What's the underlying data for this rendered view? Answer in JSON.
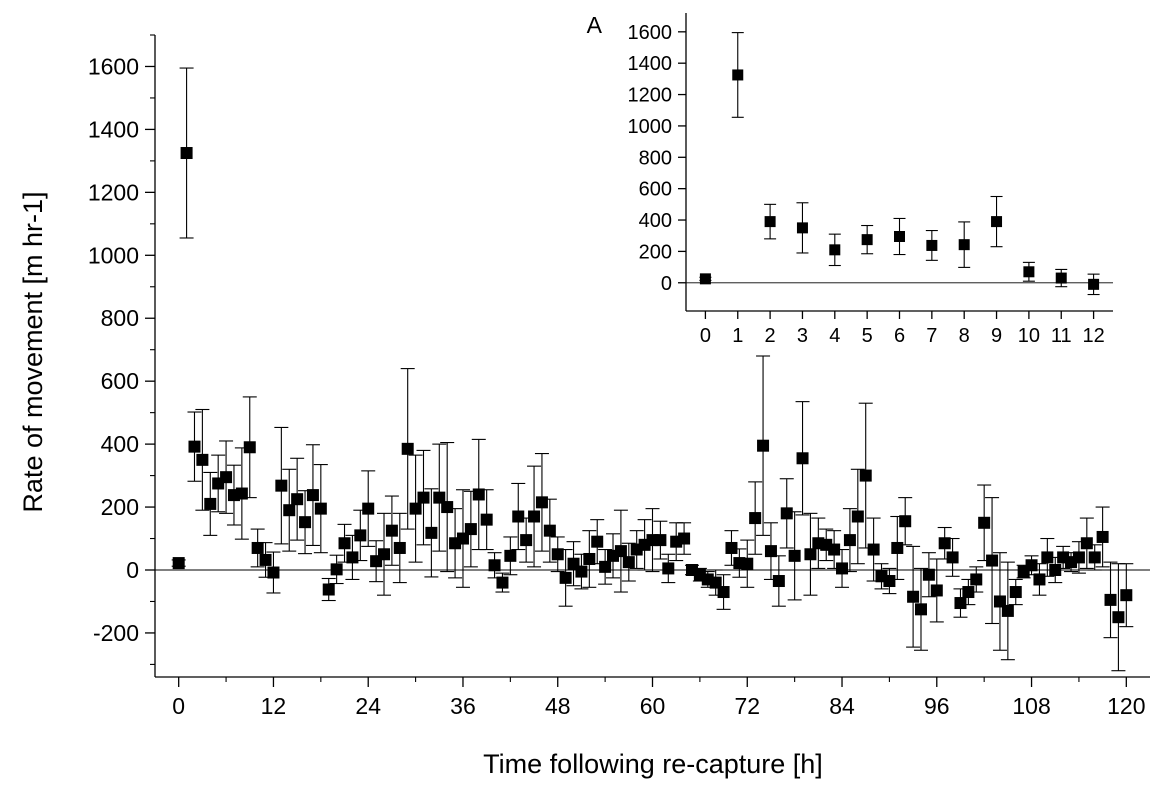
{
  "chart_data": [
    {
      "type": "scatter",
      "panel": "main",
      "title": "",
      "xlabel": "Time following re-capture [h]",
      "ylabel": "Rate of movement [m hr-1]",
      "xlim": [
        -3,
        123
      ],
      "ylim": [
        -340,
        1700
      ],
      "x_ticks": [
        0,
        12,
        24,
        36,
        48,
        60,
        72,
        84,
        96,
        108,
        120
      ],
      "y_ticks": [
        -200,
        0,
        200,
        400,
        600,
        800,
        1000,
        1200,
        1400,
        1600
      ],
      "zero_line": true,
      "marker": "square",
      "color": "#000000",
      "series": [
        {
          "points": [
            {
              "x": 0,
              "y": 22,
              "err": 10
            },
            {
              "x": 1,
              "y": 1325,
              "err": 270
            },
            {
              "x": 2,
              "y": 392,
              "err": 110
            },
            {
              "x": 3,
              "y": 350,
              "err": 160
            },
            {
              "x": 4,
              "y": 210,
              "err": 100
            },
            {
              "x": 5,
              "y": 275,
              "err": 90
            },
            {
              "x": 6,
              "y": 295,
              "err": 115
            },
            {
              "x": 7,
              "y": 238,
              "err": 95
            },
            {
              "x": 8,
              "y": 243,
              "err": 145
            },
            {
              "x": 9,
              "y": 390,
              "err": 160
            },
            {
              "x": 10,
              "y": 70,
              "err": 60
            },
            {
              "x": 11,
              "y": 32,
              "err": 55
            },
            {
              "x": 12,
              "y": -8,
              "err": 65
            },
            {
              "x": 13,
              "y": 268,
              "err": 185
            },
            {
              "x": 14,
              "y": 190,
              "err": 130
            },
            {
              "x": 15,
              "y": 225,
              "err": 130
            },
            {
              "x": 16,
              "y": 152,
              "err": 100
            },
            {
              "x": 17,
              "y": 238,
              "err": 160
            },
            {
              "x": 18,
              "y": 195,
              "err": 140
            },
            {
              "x": 19,
              "y": -62,
              "err": 35
            },
            {
              "x": 20,
              "y": 2,
              "err": 45
            },
            {
              "x": 21,
              "y": 85,
              "err": 60
            },
            {
              "x": 22,
              "y": 40,
              "err": 70
            },
            {
              "x": 23,
              "y": 110,
              "err": 80
            },
            {
              "x": 24,
              "y": 195,
              "err": 120
            },
            {
              "x": 25,
              "y": 28,
              "err": 65
            },
            {
              "x": 26,
              "y": 50,
              "err": 130
            },
            {
              "x": 27,
              "y": 125,
              "err": 110
            },
            {
              "x": 28,
              "y": 70,
              "err": 110
            },
            {
              "x": 29,
              "y": 385,
              "err": 255
            },
            {
              "x": 30,
              "y": 195,
              "err": 170
            },
            {
              "x": 31,
              "y": 230,
              "err": 150
            },
            {
              "x": 32,
              "y": 118,
              "err": 140
            },
            {
              "x": 33,
              "y": 230,
              "err": 170
            },
            {
              "x": 34,
              "y": 200,
              "err": 205
            },
            {
              "x": 35,
              "y": 85,
              "err": 110
            },
            {
              "x": 36,
              "y": 100,
              "err": 155
            },
            {
              "x": 37,
              "y": 130,
              "err": 120
            },
            {
              "x": 38,
              "y": 240,
              "err": 175
            },
            {
              "x": 39,
              "y": 160,
              "err": 95
            },
            {
              "x": 40,
              "y": 15,
              "err": 40
            },
            {
              "x": 41,
              "y": -40,
              "err": 30
            },
            {
              "x": 42,
              "y": 45,
              "err": 60
            },
            {
              "x": 43,
              "y": 170,
              "err": 105
            },
            {
              "x": 44,
              "y": 95,
              "err": 70
            },
            {
              "x": 45,
              "y": 170,
              "err": 160
            },
            {
              "x": 46,
              "y": 215,
              "err": 155
            },
            {
              "x": 47,
              "y": 125,
              "err": 100
            },
            {
              "x": 48,
              "y": 50,
              "err": 55
            },
            {
              "x": 49,
              "y": -25,
              "err": 90
            },
            {
              "x": 50,
              "y": 20,
              "err": 70
            },
            {
              "x": 51,
              "y": -5,
              "err": 55
            },
            {
              "x": 52,
              "y": 35,
              "err": 90
            },
            {
              "x": 53,
              "y": 90,
              "err": 70
            },
            {
              "x": 54,
              "y": 10,
              "err": 55
            },
            {
              "x": 55,
              "y": 45,
              "err": 70
            },
            {
              "x": 56,
              "y": 60,
              "err": 130
            },
            {
              "x": 57,
              "y": 25,
              "err": 60
            },
            {
              "x": 58,
              "y": 65,
              "err": 60
            },
            {
              "x": 59,
              "y": 80,
              "err": 80
            },
            {
              "x": 60,
              "y": 95,
              "err": 100
            },
            {
              "x": 61,
              "y": 95,
              "err": 60
            },
            {
              "x": 62,
              "y": 5,
              "err": 45
            },
            {
              "x": 63,
              "y": 90,
              "err": 60
            },
            {
              "x": 64,
              "y": 100,
              "err": 50
            },
            {
              "x": 65,
              "y": 0,
              "err": 15
            },
            {
              "x": 66,
              "y": -15,
              "err": 20
            },
            {
              "x": 67,
              "y": -30,
              "err": 25
            },
            {
              "x": 68,
              "y": -40,
              "err": 40
            },
            {
              "x": 69,
              "y": -70,
              "err": 55
            },
            {
              "x": 70,
              "y": 70,
              "err": 55
            },
            {
              "x": 71,
              "y": 22,
              "err": 45
            },
            {
              "x": 72,
              "y": 20,
              "err": 75
            },
            {
              "x": 73,
              "y": 165,
              "err": 115
            },
            {
              "x": 74,
              "y": 395,
              "err": 285
            },
            {
              "x": 75,
              "y": 60,
              "err": 90
            },
            {
              "x": 76,
              "y": -35,
              "err": 80
            },
            {
              "x": 77,
              "y": 180,
              "err": 110
            },
            {
              "x": 78,
              "y": 45,
              "err": 140
            },
            {
              "x": 79,
              "y": 355,
              "err": 180
            },
            {
              "x": 80,
              "y": 50,
              "err": 130
            },
            {
              "x": 81,
              "y": 85,
              "err": 80
            },
            {
              "x": 82,
              "y": 80,
              "err": 50
            },
            {
              "x": 83,
              "y": 65,
              "err": 60
            },
            {
              "x": 84,
              "y": 5,
              "err": 60
            },
            {
              "x": 85,
              "y": 95,
              "err": 100
            },
            {
              "x": 86,
              "y": 170,
              "err": 150
            },
            {
              "x": 87,
              "y": 300,
              "err": 230
            },
            {
              "x": 88,
              "y": 65,
              "err": 100
            },
            {
              "x": 89,
              "y": -20,
              "err": 40
            },
            {
              "x": 90,
              "y": -35,
              "err": 40
            },
            {
              "x": 91,
              "y": 70,
              "err": 100
            },
            {
              "x": 92,
              "y": 155,
              "err": 75
            },
            {
              "x": 93,
              "y": -85,
              "err": 160
            },
            {
              "x": 94,
              "y": -125,
              "err": 130
            },
            {
              "x": 95,
              "y": -15,
              "err": 70
            },
            {
              "x": 96,
              "y": -65,
              "err": 100
            },
            {
              "x": 97,
              "y": 85,
              "err": 50
            },
            {
              "x": 98,
              "y": 40,
              "err": 60
            },
            {
              "x": 99,
              "y": -105,
              "err": 45
            },
            {
              "x": 100,
              "y": -70,
              "err": 40
            },
            {
              "x": 101,
              "y": -30,
              "err": 40
            },
            {
              "x": 102,
              "y": 150,
              "err": 120
            },
            {
              "x": 103,
              "y": 30,
              "err": 200
            },
            {
              "x": 104,
              "y": -100,
              "err": 155
            },
            {
              "x": 105,
              "y": -130,
              "err": 155
            },
            {
              "x": 106,
              "y": -70,
              "err": 40
            },
            {
              "x": 107,
              "y": -5,
              "err": 20
            },
            {
              "x": 108,
              "y": 15,
              "err": 30
            },
            {
              "x": 109,
              "y": -30,
              "err": 50
            },
            {
              "x": 110,
              "y": 40,
              "err": 60
            },
            {
              "x": 111,
              "y": 0,
              "err": 40
            },
            {
              "x": 112,
              "y": 40,
              "err": 35
            },
            {
              "x": 113,
              "y": 25,
              "err": 30
            },
            {
              "x": 114,
              "y": 40,
              "err": 50
            },
            {
              "x": 115,
              "y": 85,
              "err": 80
            },
            {
              "x": 116,
              "y": 40,
              "err": 40
            },
            {
              "x": 117,
              "y": 105,
              "err": 95
            },
            {
              "x": 118,
              "y": -95,
              "err": 120
            },
            {
              "x": 119,
              "y": -150,
              "err": 170
            },
            {
              "x": 120,
              "y": -80,
              "err": 100
            }
          ]
        }
      ]
    },
    {
      "type": "scatter",
      "panel": "inset",
      "panel_label": "A",
      "title": "",
      "xlabel": "",
      "ylabel": "",
      "xlim": [
        -0.6,
        12.6
      ],
      "ylim": [
        -180,
        1720
      ],
      "x_ticks": [
        0,
        1,
        2,
        3,
        4,
        5,
        6,
        7,
        8,
        9,
        10,
        11,
        12
      ],
      "y_ticks": [
        0,
        200,
        400,
        600,
        800,
        1000,
        1200,
        1400,
        1600
      ],
      "zero_line": true,
      "marker": "square",
      "color": "#000000",
      "series": [
        {
          "points": [
            {
              "x": 0,
              "y": 25,
              "err": 10
            },
            {
              "x": 1,
              "y": 1325,
              "err": 270
            },
            {
              "x": 2,
              "y": 390,
              "err": 110
            },
            {
              "x": 3,
              "y": 350,
              "err": 160
            },
            {
              "x": 4,
              "y": 210,
              "err": 100
            },
            {
              "x": 5,
              "y": 275,
              "err": 90
            },
            {
              "x": 6,
              "y": 295,
              "err": 115
            },
            {
              "x": 7,
              "y": 238,
              "err": 95
            },
            {
              "x": 8,
              "y": 243,
              "err": 145
            },
            {
              "x": 9,
              "y": 390,
              "err": 160
            },
            {
              "x": 10,
              "y": 70,
              "err": 60
            },
            {
              "x": 11,
              "y": 30,
              "err": 55
            },
            {
              "x": 12,
              "y": -10,
              "err": 65
            }
          ]
        }
      ]
    }
  ]
}
